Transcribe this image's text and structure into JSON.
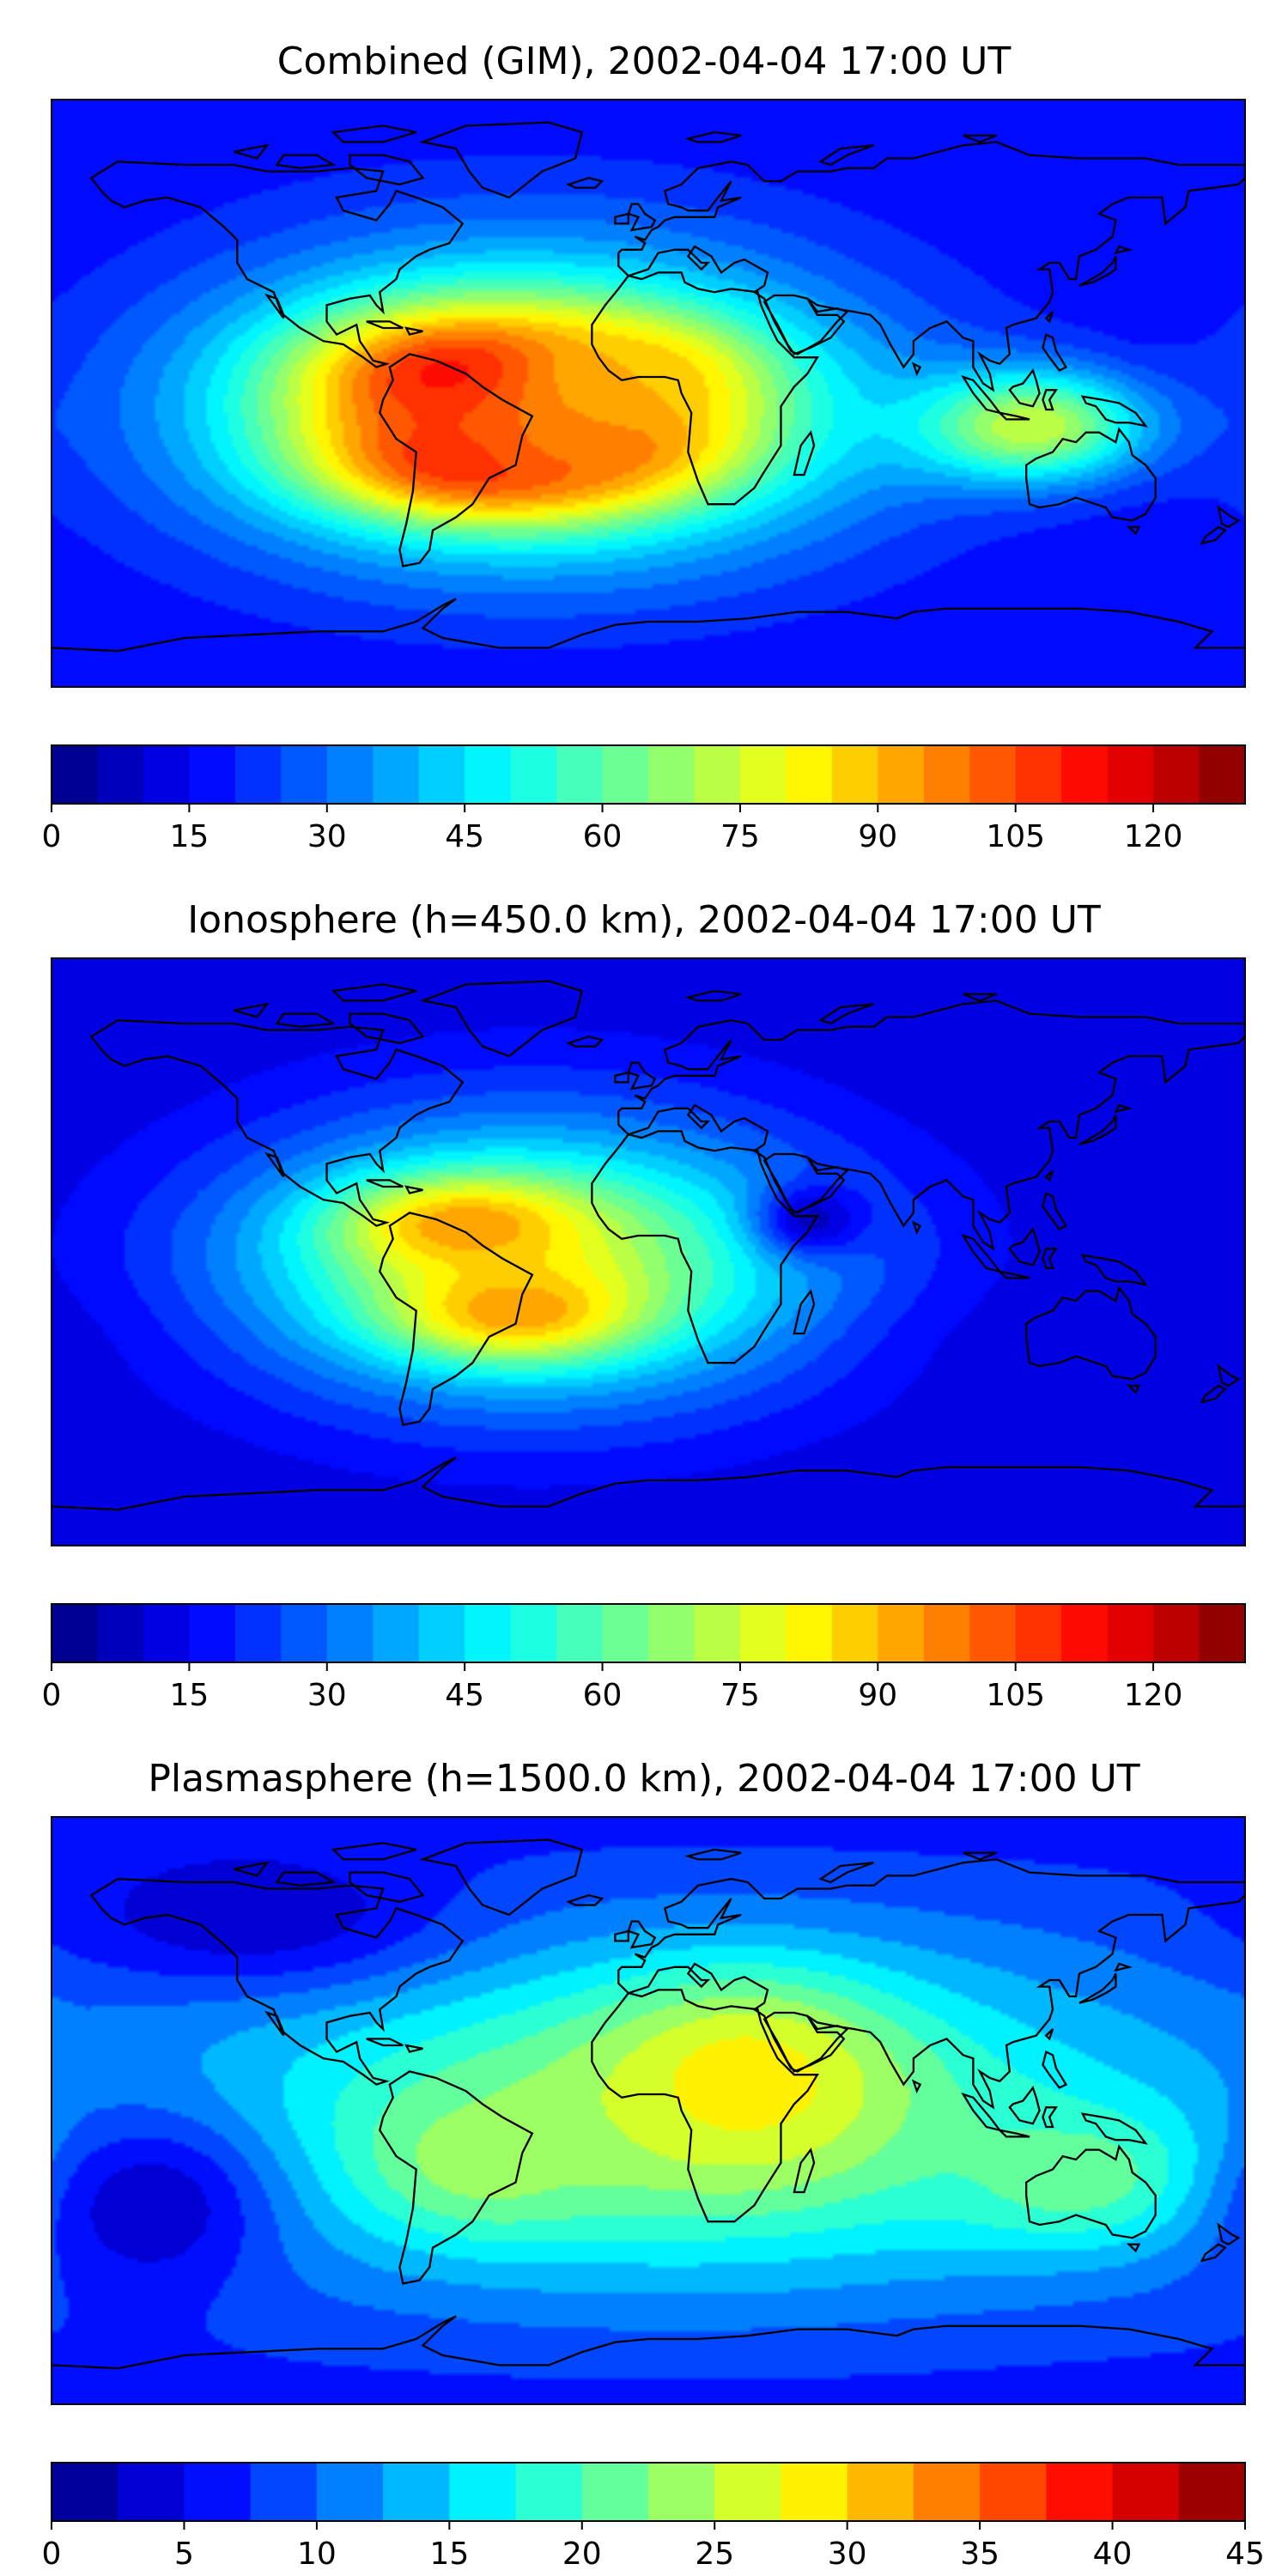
{
  "chart_data": [
    {
      "type": "heatmap",
      "title": "Combined (GIM), 2002-04-04 17:00 UT",
      "colorbar": {
        "min": 0,
        "max": 130,
        "levels": 26,
        "step": 5,
        "ticks": [
          0,
          15,
          30,
          45,
          60,
          75,
          90,
          105,
          120
        ],
        "tick_labels": [
          "0",
          "15",
          "30",
          "45",
          "60",
          "75",
          "90",
          "105",
          "120"
        ]
      },
      "hotspots": [
        {
          "name": "S-America north crest",
          "lon": -55,
          "lat": 5,
          "value": 115,
          "rlon": 32,
          "rlat": 14
        },
        {
          "name": "S-America south crest",
          "lon": -50,
          "lat": -20,
          "value": 115,
          "rlon": 32,
          "rlat": 12
        },
        {
          "name": "S-Atlantic crest",
          "lon": -20,
          "lat": -15,
          "value": 100,
          "rlon": 30,
          "rlat": 12
        },
        {
          "name": "W-Africa north crest",
          "lon": -5,
          "lat": 5,
          "value": 90,
          "rlon": 25,
          "rlat": 12
        },
        {
          "name": "Maritime Asia",
          "lon": 115,
          "lat": -10,
          "value": 75,
          "rlon": 25,
          "rlat": 12
        }
      ]
    },
    {
      "type": "heatmap",
      "title": "Ionosphere  (h=450.0 km), 2002-04-04 17:00 UT",
      "colorbar": {
        "min": 0,
        "max": 130,
        "levels": 26,
        "step": 5,
        "ticks": [
          0,
          15,
          30,
          45,
          60,
          75,
          90,
          105,
          120
        ],
        "tick_labels": [
          "0",
          "15",
          "30",
          "45",
          "60",
          "75",
          "90",
          "105",
          "120"
        ]
      },
      "hotspots": [
        {
          "name": "S-America north crest",
          "lon": -55,
          "lat": 8,
          "value": 95,
          "rlon": 25,
          "rlat": 10
        },
        {
          "name": "S-America south crest",
          "lon": -40,
          "lat": -18,
          "value": 95,
          "rlon": 25,
          "rlat": 10
        },
        {
          "name": "Horn of Africa minimum",
          "lon": 50,
          "lat": 10,
          "value": 8,
          "rlon": 12,
          "rlat": 8
        },
        {
          "name": "S-Pacific minimum",
          "lon": 140,
          "lat": -30,
          "value": 12,
          "rlon": 40,
          "rlat": 15
        }
      ]
    },
    {
      "type": "heatmap",
      "title": "Plasmasphere (h=1500.0 km), 2002-04-04 17:00 UT",
      "colorbar": {
        "min": 0,
        "max": 45,
        "levels": 18,
        "step": 2.5,
        "ticks": [
          0,
          5,
          10,
          15,
          20,
          25,
          30,
          35,
          40,
          45
        ],
        "tick_labels": [
          "0",
          "5",
          "10",
          "15",
          "20",
          "25",
          "30",
          "35",
          "40",
          "45"
        ]
      },
      "hotspots": [
        {
          "name": "E-Africa maximum",
          "lon": 30,
          "lat": 10,
          "value": 29,
          "rlon": 30,
          "rlat": 20
        },
        {
          "name": "S-America",
          "lon": -50,
          "lat": -15,
          "value": 24,
          "rlon": 25,
          "rlat": 15
        },
        {
          "name": "Australia",
          "lon": 130,
          "lat": -20,
          "value": 22,
          "rlon": 30,
          "rlat": 15
        },
        {
          "name": "S-Pacific minimum",
          "lon": -150,
          "lat": -30,
          "value": 3,
          "rlon": 25,
          "rlat": 20
        },
        {
          "name": "N-Pacific/NA minimum",
          "lon": -120,
          "lat": 60,
          "value": 3,
          "rlon": 40,
          "rlat": 15
        }
      ]
    }
  ]
}
